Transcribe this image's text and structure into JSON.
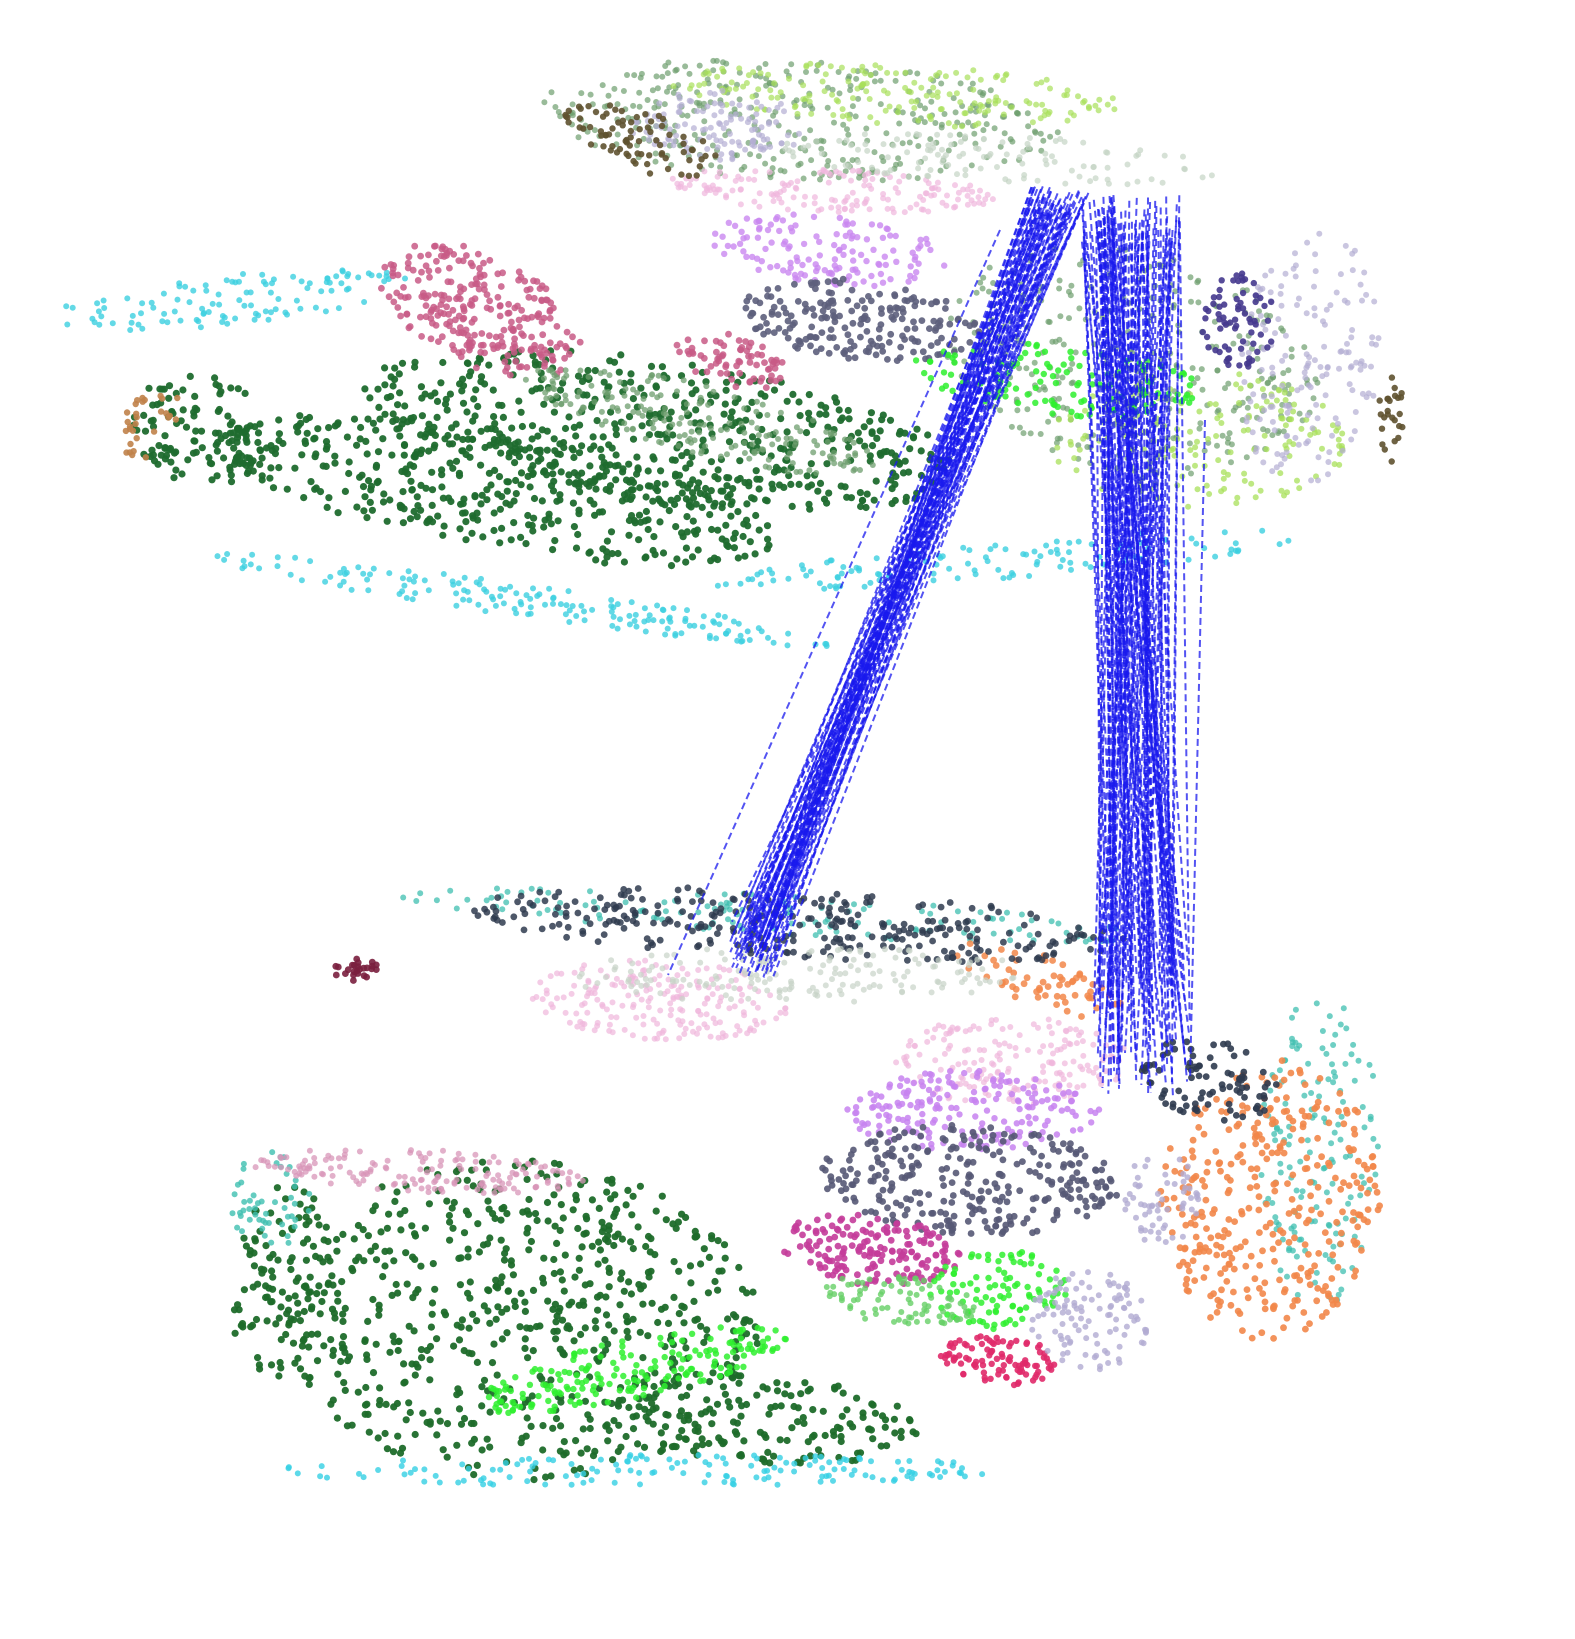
{
  "figure": {
    "kind": "3D spatial transcriptomics alignment",
    "background_color": "#ffffff",
    "slices": [
      {
        "id": "upper-slice",
        "cluster_colors": [
          {
            "name": "dark-green",
            "color": "#1f6b2e"
          },
          {
            "name": "cyan",
            "color": "#3ccfe0"
          },
          {
            "name": "sage-green",
            "color": "#6e9e6e"
          },
          {
            "name": "lime",
            "color": "#a8e05a"
          },
          {
            "name": "rose",
            "color": "#c85a86"
          },
          {
            "name": "olive-brown",
            "color": "#5f5230"
          },
          {
            "name": "lavender",
            "color": "#b3aed3"
          },
          {
            "name": "violet",
            "color": "#c987f0"
          },
          {
            "name": "slate",
            "color": "#5d5f7c"
          },
          {
            "name": "bright-green",
            "color": "#2ef02e"
          },
          {
            "name": "indigo",
            "color": "#45388e"
          },
          {
            "name": "pink",
            "color": "#f0b7dd"
          },
          {
            "name": "pale-grey-green",
            "color": "#c4d4c4"
          },
          {
            "name": "tan-orange",
            "color": "#c0824a"
          }
        ]
      },
      {
        "id": "lower-slice",
        "cluster_colors": [
          {
            "name": "dark-green",
            "color": "#1e6b2a"
          },
          {
            "name": "cyan",
            "color": "#35d0e3"
          },
          {
            "name": "teal",
            "color": "#3fbfb0"
          },
          {
            "name": "orange",
            "color": "#f2874a"
          },
          {
            "name": "charcoal",
            "color": "#2f3b4f"
          },
          {
            "name": "pink",
            "color": "#f0b6dc"
          },
          {
            "name": "pale-grey-green",
            "color": "#c7d3c7"
          },
          {
            "name": "violet",
            "color": "#c782f0"
          },
          {
            "name": "slate",
            "color": "#565976"
          },
          {
            "name": "magenta",
            "color": "#c43c9a"
          },
          {
            "name": "bright-green",
            "color": "#2ff02f"
          },
          {
            "name": "crimson",
            "color": "#e02a6a"
          },
          {
            "name": "lavender",
            "color": "#b2abd2"
          },
          {
            "name": "light-green",
            "color": "#67cf67"
          },
          {
            "name": "dusty-pink",
            "color": "#d896b8"
          },
          {
            "name": "maroon",
            "color": "#7a1f3e"
          }
        ]
      }
    ],
    "alignment_lines": {
      "style": "dashed",
      "color": "#1a1aee",
      "bundles": [
        "diagonal-bundle",
        "vertical-bundle"
      ]
    }
  }
}
